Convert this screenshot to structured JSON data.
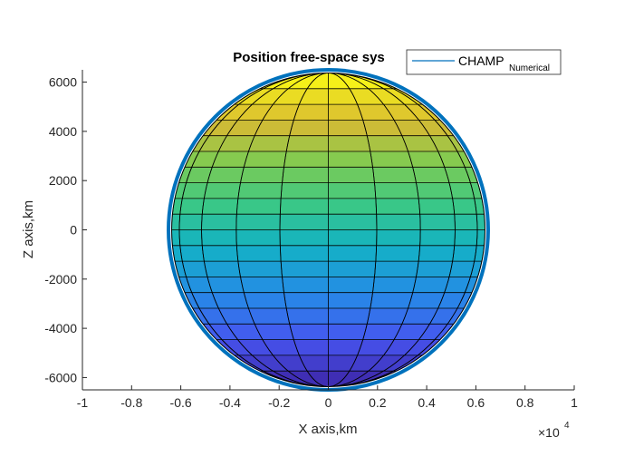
{
  "chart_data": {
    "type": "line",
    "title": "Position free-space sys",
    "xlabel": "X axis,km",
    "ylabel": "Z axis,km",
    "x_exponent_label": {
      "prefix": "×10",
      "power": "4"
    },
    "xlim": [
      -1,
      1
    ],
    "ylim": [
      -6500,
      6500
    ],
    "x_ticks": [
      -1,
      -0.8,
      -0.6,
      -0.4,
      -0.2,
      0,
      0.2,
      0.4,
      0.6,
      0.8,
      1
    ],
    "x_tick_labels": [
      "-1",
      "-0.8",
      "-0.6",
      "-0.4",
      "-0.2",
      "0",
      "0.2",
      "0.4",
      "0.6",
      "0.8",
      "1"
    ],
    "y_ticks": [
      -6000,
      -4000,
      -2000,
      0,
      2000,
      4000,
      6000
    ],
    "y_tick_labels": [
      "-6000",
      "-4000",
      "-2000",
      "0",
      "2000",
      "4000",
      "6000"
    ],
    "legend": {
      "placement": "top-right",
      "entries": [
        {
          "name": "CHAMP",
          "subscript": "Numerical",
          "color": "#0072BD"
        }
      ]
    },
    "surface": {
      "kind": "sphere",
      "radius_km": 6371,
      "colormap": "parula",
      "latitude_bands": 20,
      "longitude_lines": 20
    },
    "series": [
      {
        "name": "CHAMP Numerical",
        "shape": "circular orbit",
        "radius_km": 6500,
        "color": "#0072BD"
      }
    ]
  }
}
